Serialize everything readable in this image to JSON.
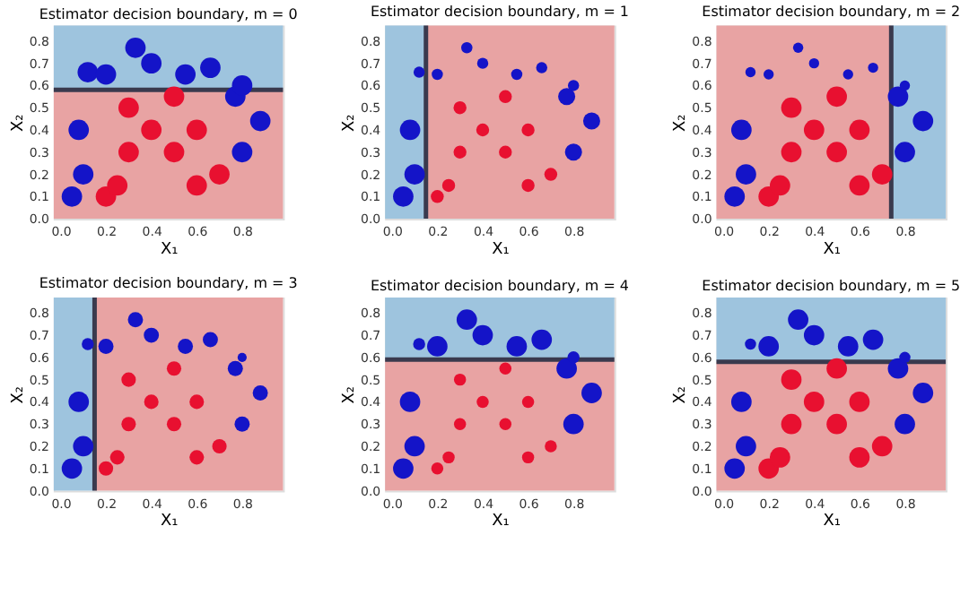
{
  "chart_data": [
    {
      "type": "bubble",
      "title": "Estimator decision boundary, m = 0",
      "xlabel": "X₁",
      "ylabel": "X₂",
      "xlim": [
        -0.03,
        0.98
      ],
      "ylim": [
        0,
        0.87
      ],
      "xticks": [
        {
          "value": 0,
          "label": "0.0"
        },
        {
          "value": 0.2,
          "label": "0.2"
        },
        {
          "value": 0.4,
          "label": "0.4"
        },
        {
          "value": 0.6,
          "label": "0.6"
        },
        {
          "value": 0.8,
          "label": "0.8"
        }
      ],
      "yticks": [
        {
          "value": 0,
          "label": "0.0"
        },
        {
          "value": 0.1,
          "label": "0.1"
        },
        {
          "value": 0.2,
          "label": "0.2"
        },
        {
          "value": 0.3,
          "label": "0.3"
        },
        {
          "value": 0.4,
          "label": "0.4"
        },
        {
          "value": 0.5,
          "label": "0.5"
        },
        {
          "value": 0.6,
          "label": "0.6"
        },
        {
          "value": 0.7,
          "label": "0.7"
        },
        {
          "value": 0.8,
          "label": "0.8"
        }
      ],
      "grid": false,
      "marker": "circle",
      "bands": [
        {
          "axis": "y",
          "from": 0.58,
          "to": 0.87,
          "color": "#9ec4de"
        },
        {
          "axis": "y",
          "from": 0,
          "to": 0.58,
          "color": "#e8a3a3"
        }
      ],
      "ref_lines": [
        {
          "axis": "y",
          "value": 0.58,
          "color": "#3a3a4e"
        }
      ],
      "series": [
        {
          "color": "#1414c8",
          "x": [
            0.05,
            0.1,
            0.08,
            0.12,
            0.2,
            0.33,
            0.4,
            0.55,
            0.66,
            0.77,
            0.8,
            0.88,
            0.8
          ],
          "values": [
            0.1,
            0.2,
            0.4,
            0.66,
            0.65,
            0.77,
            0.7,
            0.65,
            0.68,
            0.55,
            0.6,
            0.44,
            0.3
          ],
          "sizes": [
            1,
            1,
            1,
            1,
            1,
            1,
            1,
            1,
            1,
            1,
            1,
            1,
            1
          ]
        },
        {
          "color": "#e81030",
          "x": [
            0.2,
            0.25,
            0.3,
            0.3,
            0.4,
            0.5,
            0.5,
            0.6,
            0.6,
            0.7
          ],
          "values": [
            0.1,
            0.15,
            0.3,
            0.5,
            0.4,
            0.3,
            0.55,
            0.4,
            0.15,
            0.2
          ],
          "sizes": [
            1,
            1,
            1,
            1,
            1,
            1,
            1,
            1,
            1,
            1
          ]
        }
      ]
    },
    {
      "type": "bubble",
      "title": "Estimator decision boundary, m = 1",
      "xlabel": "X₁",
      "ylabel": "X₂",
      "xlim": [
        -0.03,
        0.98
      ],
      "ylim": [
        0,
        0.87
      ],
      "xticks": [
        {
          "value": 0,
          "label": "0.0"
        },
        {
          "value": 0.2,
          "label": "0.2"
        },
        {
          "value": 0.4,
          "label": "0.4"
        },
        {
          "value": 0.6,
          "label": "0.6"
        },
        {
          "value": 0.8,
          "label": "0.8"
        }
      ],
      "yticks": [
        {
          "value": 0,
          "label": "0.0"
        },
        {
          "value": 0.1,
          "label": "0.1"
        },
        {
          "value": 0.2,
          "label": "0.2"
        },
        {
          "value": 0.3,
          "label": "0.3"
        },
        {
          "value": 0.4,
          "label": "0.4"
        },
        {
          "value": 0.5,
          "label": "0.5"
        },
        {
          "value": 0.6,
          "label": "0.6"
        },
        {
          "value": 0.7,
          "label": "0.7"
        },
        {
          "value": 0.8,
          "label": "0.8"
        }
      ],
      "grid": false,
      "marker": "circle",
      "bands": [
        {
          "axis": "x",
          "from": -0.03,
          "to": 0.15,
          "color": "#9ec4de"
        },
        {
          "axis": "x",
          "from": 0.15,
          "to": 0.98,
          "color": "#e8a3a3"
        }
      ],
      "ref_lines": [
        {
          "axis": "x",
          "value": 0.15,
          "color": "#3a3a4e"
        }
      ],
      "series": [
        {
          "color": "#1414c8",
          "x": [
            0.05,
            0.1,
            0.08,
            0.12,
            0.2,
            0.33,
            0.4,
            0.55,
            0.66,
            0.77,
            0.8,
            0.88,
            0.8
          ],
          "values": [
            0.1,
            0.2,
            0.4,
            0.66,
            0.65,
            0.77,
            0.7,
            0.65,
            0.68,
            0.55,
            0.6,
            0.44,
            0.3
          ],
          "sizes": [
            1,
            1,
            1,
            0.3,
            0.3,
            0.3,
            0.3,
            0.3,
            0.3,
            0.7,
            0.3,
            0.7,
            0.7
          ]
        },
        {
          "color": "#e81030",
          "x": [
            0.2,
            0.25,
            0.3,
            0.3,
            0.4,
            0.5,
            0.5,
            0.6,
            0.6,
            0.7
          ],
          "values": [
            0.1,
            0.15,
            0.3,
            0.5,
            0.4,
            0.3,
            0.55,
            0.4,
            0.15,
            0.2
          ],
          "sizes": [
            0.4,
            0.4,
            0.4,
            0.4,
            0.4,
            0.4,
            0.4,
            0.4,
            0.4,
            0.4
          ]
        }
      ]
    },
    {
      "type": "bubble",
      "title": "Estimator decision boundary, m = 2",
      "xlabel": "X₁",
      "ylabel": "X₂",
      "xlim": [
        -0.03,
        0.98
      ],
      "ylim": [
        0,
        0.87
      ],
      "xticks": [
        {
          "value": 0,
          "label": "0.0"
        },
        {
          "value": 0.2,
          "label": "0.2"
        },
        {
          "value": 0.4,
          "label": "0.4"
        },
        {
          "value": 0.6,
          "label": "0.6"
        },
        {
          "value": 0.8,
          "label": "0.8"
        }
      ],
      "yticks": [
        {
          "value": 0,
          "label": "0.0"
        },
        {
          "value": 0.1,
          "label": "0.1"
        },
        {
          "value": 0.2,
          "label": "0.2"
        },
        {
          "value": 0.3,
          "label": "0.3"
        },
        {
          "value": 0.4,
          "label": "0.4"
        },
        {
          "value": 0.5,
          "label": "0.5"
        },
        {
          "value": 0.6,
          "label": "0.6"
        },
        {
          "value": 0.7,
          "label": "0.7"
        },
        {
          "value": 0.8,
          "label": "0.8"
        }
      ],
      "grid": false,
      "marker": "circle",
      "bands": [
        {
          "axis": "x",
          "from": -0.03,
          "to": 0.74,
          "color": "#e8a3a3"
        },
        {
          "axis": "x",
          "from": 0.74,
          "to": 0.98,
          "color": "#9ec4de"
        }
      ],
      "ref_lines": [
        {
          "axis": "x",
          "value": 0.74,
          "color": "#3a3a4e"
        }
      ],
      "series": [
        {
          "color": "#1414c8",
          "x": [
            0.05,
            0.1,
            0.08,
            0.12,
            0.2,
            0.33,
            0.4,
            0.55,
            0.66,
            0.77,
            0.8,
            0.88,
            0.8
          ],
          "values": [
            0.1,
            0.2,
            0.4,
            0.66,
            0.65,
            0.77,
            0.7,
            0.65,
            0.68,
            0.55,
            0.6,
            0.44,
            0.3
          ],
          "sizes": [
            1,
            1,
            1,
            0.25,
            0.25,
            0.25,
            0.25,
            0.25,
            0.25,
            1,
            0.25,
            1,
            1
          ]
        },
        {
          "color": "#e81030",
          "x": [
            0.2,
            0.25,
            0.3,
            0.3,
            0.4,
            0.5,
            0.5,
            0.6,
            0.6,
            0.7
          ],
          "values": [
            0.1,
            0.15,
            0.3,
            0.5,
            0.4,
            0.3,
            0.55,
            0.4,
            0.15,
            0.2
          ],
          "sizes": [
            1,
            1,
            1,
            1,
            1,
            1,
            1,
            1,
            1,
            1
          ]
        }
      ]
    },
    {
      "type": "bubble",
      "title": "Estimator decision boundary, m = 3",
      "xlabel": "X₁",
      "ylabel": "X₂",
      "xlim": [
        -0.03,
        0.98
      ],
      "ylim": [
        0,
        0.87
      ],
      "xticks": [
        {
          "value": 0,
          "label": "0.0"
        },
        {
          "value": 0.2,
          "label": "0.2"
        },
        {
          "value": 0.4,
          "label": "0.4"
        },
        {
          "value": 0.6,
          "label": "0.6"
        },
        {
          "value": 0.8,
          "label": "0.8"
        }
      ],
      "yticks": [
        {
          "value": 0,
          "label": "0.0"
        },
        {
          "value": 0.1,
          "label": "0.1"
        },
        {
          "value": 0.2,
          "label": "0.2"
        },
        {
          "value": 0.3,
          "label": "0.3"
        },
        {
          "value": 0.4,
          "label": "0.4"
        },
        {
          "value": 0.5,
          "label": "0.5"
        },
        {
          "value": 0.6,
          "label": "0.6"
        },
        {
          "value": 0.7,
          "label": "0.7"
        },
        {
          "value": 0.8,
          "label": "0.8"
        }
      ],
      "grid": false,
      "marker": "circle",
      "bands": [
        {
          "axis": "x",
          "from": -0.03,
          "to": 0.15,
          "color": "#9ec4de"
        },
        {
          "axis": "x",
          "from": 0.15,
          "to": 0.98,
          "color": "#e8a3a3"
        }
      ],
      "ref_lines": [
        {
          "axis": "x",
          "value": 0.15,
          "color": "#3a3a4e"
        }
      ],
      "series": [
        {
          "color": "#1414c8",
          "x": [
            0.05,
            0.1,
            0.08,
            0.12,
            0.2,
            0.33,
            0.4,
            0.55,
            0.66,
            0.77,
            0.8,
            0.88,
            0.8
          ],
          "values": [
            0.1,
            0.2,
            0.4,
            0.66,
            0.65,
            0.77,
            0.7,
            0.65,
            0.68,
            0.55,
            0.6,
            0.44,
            0.3
          ],
          "sizes": [
            1,
            1,
            1,
            0.35,
            0.55,
            0.55,
            0.55,
            0.55,
            0.55,
            0.55,
            0.2,
            0.55,
            0.55
          ]
        },
        {
          "color": "#e81030",
          "x": [
            0.2,
            0.25,
            0.3,
            0.3,
            0.4,
            0.5,
            0.5,
            0.6,
            0.6,
            0.7
          ],
          "values": [
            0.1,
            0.15,
            0.3,
            0.5,
            0.4,
            0.3,
            0.55,
            0.4,
            0.15,
            0.2
          ],
          "sizes": [
            0.5,
            0.5,
            0.5,
            0.5,
            0.5,
            0.5,
            0.5,
            0.5,
            0.5,
            0.5
          ]
        }
      ]
    },
    {
      "type": "bubble",
      "title": "Estimator decision boundary, m = 4",
      "xlabel": "X₁",
      "ylabel": "X₂",
      "xlim": [
        -0.03,
        0.98
      ],
      "ylim": [
        0,
        0.87
      ],
      "xticks": [
        {
          "value": 0,
          "label": "0.0"
        },
        {
          "value": 0.2,
          "label": "0.2"
        },
        {
          "value": 0.4,
          "label": "0.4"
        },
        {
          "value": 0.6,
          "label": "0.6"
        },
        {
          "value": 0.8,
          "label": "0.8"
        }
      ],
      "yticks": [
        {
          "value": 0,
          "label": "0.0"
        },
        {
          "value": 0.1,
          "label": "0.1"
        },
        {
          "value": 0.2,
          "label": "0.2"
        },
        {
          "value": 0.3,
          "label": "0.3"
        },
        {
          "value": 0.4,
          "label": "0.4"
        },
        {
          "value": 0.5,
          "label": "0.5"
        },
        {
          "value": 0.6,
          "label": "0.6"
        },
        {
          "value": 0.7,
          "label": "0.7"
        },
        {
          "value": 0.8,
          "label": "0.8"
        }
      ],
      "grid": false,
      "marker": "circle",
      "bands": [
        {
          "axis": "y",
          "from": 0.59,
          "to": 0.87,
          "color": "#9ec4de"
        },
        {
          "axis": "y",
          "from": 0,
          "to": 0.59,
          "color": "#e8a3a3"
        }
      ],
      "ref_lines": [
        {
          "axis": "y",
          "value": 0.59,
          "color": "#3a3a4e"
        }
      ],
      "series": [
        {
          "color": "#1414c8",
          "x": [
            0.05,
            0.1,
            0.08,
            0.12,
            0.2,
            0.33,
            0.4,
            0.55,
            0.66,
            0.77,
            0.8,
            0.88,
            0.8
          ],
          "values": [
            0.1,
            0.2,
            0.4,
            0.66,
            0.65,
            0.77,
            0.7,
            0.65,
            0.68,
            0.55,
            0.6,
            0.44,
            0.3
          ],
          "sizes": [
            1,
            1,
            1,
            0.35,
            1,
            1,
            1,
            1,
            1,
            1,
            0.35,
            1,
            1
          ]
        },
        {
          "color": "#e81030",
          "x": [
            0.2,
            0.25,
            0.3,
            0.3,
            0.4,
            0.5,
            0.5,
            0.6,
            0.6,
            0.7
          ],
          "values": [
            0.1,
            0.15,
            0.3,
            0.5,
            0.4,
            0.3,
            0.55,
            0.4,
            0.15,
            0.2
          ],
          "sizes": [
            0.35,
            0.35,
            0.35,
            0.35,
            0.35,
            0.35,
            0.35,
            0.35,
            0.35,
            0.35
          ]
        }
      ]
    },
    {
      "type": "bubble",
      "title": "Estimator decision boundary, m = 5",
      "xlabel": "X₁",
      "ylabel": "X₂",
      "xlim": [
        -0.03,
        0.98
      ],
      "ylim": [
        0,
        0.87
      ],
      "xticks": [
        {
          "value": 0,
          "label": "0.0"
        },
        {
          "value": 0.2,
          "label": "0.2"
        },
        {
          "value": 0.4,
          "label": "0.4"
        },
        {
          "value": 0.6,
          "label": "0.6"
        },
        {
          "value": 0.8,
          "label": "0.8"
        }
      ],
      "yticks": [
        {
          "value": 0,
          "label": "0.0"
        },
        {
          "value": 0.1,
          "label": "0.1"
        },
        {
          "value": 0.2,
          "label": "0.2"
        },
        {
          "value": 0.3,
          "label": "0.3"
        },
        {
          "value": 0.4,
          "label": "0.4"
        },
        {
          "value": 0.5,
          "label": "0.5"
        },
        {
          "value": 0.6,
          "label": "0.6"
        },
        {
          "value": 0.7,
          "label": "0.7"
        },
        {
          "value": 0.8,
          "label": "0.8"
        }
      ],
      "grid": false,
      "marker": "circle",
      "bands": [
        {
          "axis": "y",
          "from": 0.58,
          "to": 0.87,
          "color": "#9ec4de"
        },
        {
          "axis": "y",
          "from": 0,
          "to": 0.58,
          "color": "#e8a3a3"
        }
      ],
      "ref_lines": [
        {
          "axis": "y",
          "value": 0.58,
          "color": "#3a3a4e"
        }
      ],
      "series": [
        {
          "color": "#1414c8",
          "x": [
            0.05,
            0.1,
            0.08,
            0.12,
            0.2,
            0.33,
            0.4,
            0.55,
            0.66,
            0.77,
            0.8,
            0.88,
            0.8
          ],
          "values": [
            0.1,
            0.2,
            0.4,
            0.66,
            0.65,
            0.77,
            0.7,
            0.65,
            0.68,
            0.55,
            0.6,
            0.44,
            0.3
          ],
          "sizes": [
            1,
            1,
            1,
            0.3,
            1,
            1,
            1,
            1,
            1,
            1,
            0.3,
            1,
            1
          ]
        },
        {
          "color": "#e81030",
          "x": [
            0.2,
            0.25,
            0.3,
            0.3,
            0.4,
            0.5,
            0.5,
            0.6,
            0.6,
            0.7
          ],
          "values": [
            0.1,
            0.15,
            0.3,
            0.5,
            0.4,
            0.3,
            0.55,
            0.4,
            0.15,
            0.2
          ],
          "sizes": [
            1,
            1,
            1,
            1,
            1,
            1,
            1,
            1,
            1,
            1
          ]
        }
      ]
    }
  ]
}
